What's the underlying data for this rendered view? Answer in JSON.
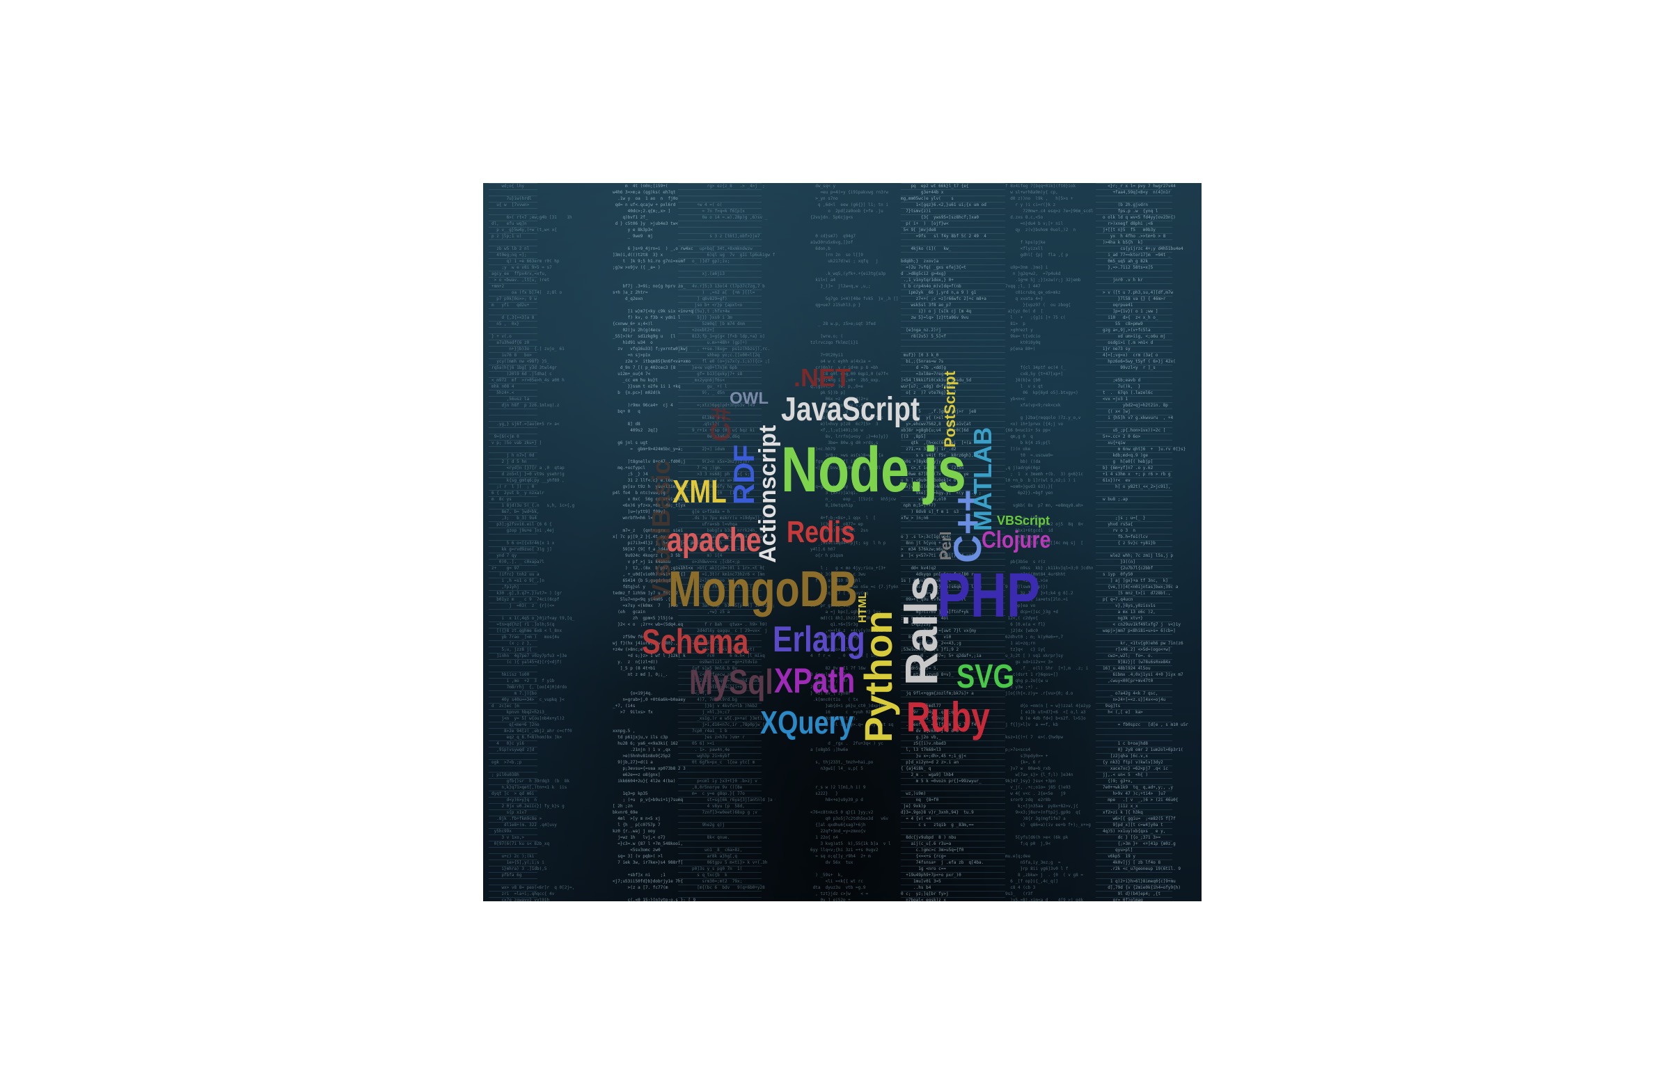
{
  "words": [
    {
      "id": "nodejs",
      "text": "Node.js",
      "color": "#7ed34d"
    },
    {
      "id": "javascript",
      "text": "JavaScript",
      "color": "#d9d9d9"
    },
    {
      "id": "mongodb",
      "text": "MongoDB",
      "color": "#8c6d2a"
    },
    {
      "id": "python",
      "text": "Python",
      "color": "#d8cc3a"
    },
    {
      "id": "rails",
      "text": "Rails",
      "color": "#c8c8c8"
    },
    {
      "id": "php",
      "text": "PHP",
      "color": "#3b2bb0"
    },
    {
      "id": "cpp",
      "text": "C++",
      "color": "#6a8ee0"
    },
    {
      "id": "matlab",
      "text": "MATLAB",
      "color": "#3aa0c8"
    },
    {
      "id": "postscript",
      "text": "PostScript",
      "color": "#d8c83a"
    },
    {
      "id": "actionscript",
      "text": "Actionscript",
      "color": "#e0e0e0"
    },
    {
      "id": "rdf",
      "text": "RDF",
      "color": "#3a5cd8"
    },
    {
      "id": "xml",
      "text": "XML",
      "color": "#e0c83a"
    },
    {
      "id": "apache",
      "text": "apache",
      "color": "#d85a5a"
    },
    {
      "id": "redis",
      "text": "Redis",
      "color": "#c83a3a"
    },
    {
      "id": "schema",
      "text": "Schema",
      "color": "#b83a3a"
    },
    {
      "id": "erlang",
      "text": "Erlang",
      "color": "#5a4ac8"
    },
    {
      "id": "xpath",
      "text": "XPath",
      "color": "#a02ab8"
    },
    {
      "id": "xquery",
      "text": "XQuery",
      "color": "#2a8ac8"
    },
    {
      "id": "mysql",
      "text": "MySql",
      "color": "#5a3a4a"
    },
    {
      "id": "ruby",
      "text": "Ruby",
      "color": "#c82a3a"
    },
    {
      "id": "svg",
      "text": "SVG",
      "color": "#4ac84a"
    },
    {
      "id": "clojure",
      "text": "Clojure",
      "color": "#b83ab8"
    },
    {
      "id": "vbscript",
      "text": "VBScript",
      "color": "#6ac83a"
    },
    {
      "id": "perl",
      "text": "Perl",
      "color": "#7a7a7a"
    },
    {
      "id": "html",
      "text": "HTML",
      "color": "#d8c83a"
    },
    {
      "id": "owl",
      "text": "OWL",
      "color": "#7a8aa8"
    },
    {
      "id": "net",
      "text": ".NET",
      "color": "#7a2a2a"
    },
    {
      "id": "csharp",
      "text": "C#",
      "color": "#6a2a2a"
    },
    {
      "id": "visualbasic",
      "text": "VisualBasic",
      "color": "#5a3a2a"
    }
  ]
}
